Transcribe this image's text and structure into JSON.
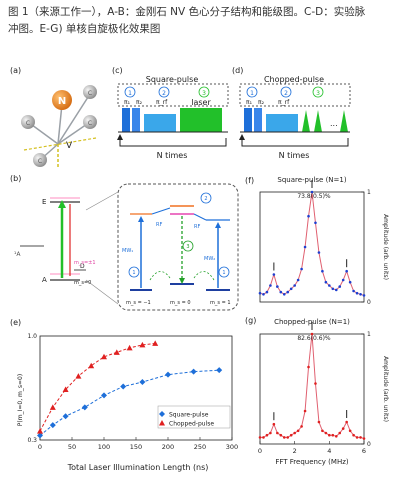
{
  "caption": {
    "line1": "图 1（来源工作一），A-B：金刚石 NV 色心分子结构和能级图。C-D：实验脉",
    "line2": "冲图。E-G) 单核自旋极化效果图"
  },
  "panels": {
    "a": "(a)",
    "b": "(b)",
    "c": "(c)",
    "d": "(d)",
    "e": "(e)",
    "f": "(f)",
    "g": "(g)"
  },
  "structure": {
    "N": "N",
    "C": "C",
    "V": "V"
  },
  "levels": {
    "E": "E",
    "A": "A",
    "A1": "¹A",
    "D": "D",
    "ms_pm1": "m_s=±1",
    "ms_0": "m_s=0",
    "bottom_left": "m_s = −1",
    "bottom_mid": "m_s = 0",
    "bottom_right": "m_s = 1",
    "rf": "RF",
    "mw1": "MW₁",
    "mw2": "MW₂",
    "num1": "1",
    "num2": "2",
    "num3": "3"
  },
  "pulse_c": {
    "title": "Square-pulse",
    "labels": [
      "π₁",
      "π₂",
      "π_rf",
      "laser"
    ],
    "steps": [
      "1",
      "2",
      "3"
    ],
    "loop": "N times"
  },
  "pulse_d": {
    "title": "Chopped-pulse",
    "labels": [
      "π₁",
      "π₂",
      "π_rf"
    ],
    "steps": [
      "1",
      "2",
      "3"
    ],
    "dots": "...",
    "loop": "N times"
  },
  "colors": {
    "blue": "#1e6fd9",
    "red": "#e02020",
    "green": "#22c02a",
    "pink": "#ff8ec0",
    "orange": "#f07020",
    "grid": "#999999"
  },
  "chart_data": [
    {
      "type": "scatter",
      "id": "e",
      "xlabel": "Total Laser Illumination Length (ns)",
      "ylabel": "P(m_I=0, m_s=0)",
      "xlim": [
        0,
        300
      ],
      "ylim": [
        0.3,
        1.0
      ],
      "xticks": [
        0,
        50,
        100,
        150,
        200,
        250,
        300
      ],
      "yticks": [
        "0.3",
        "1.0"
      ],
      "legend": [
        "Square-pulse",
        "Chopped-pulse"
      ],
      "legend_position": "bottom-right",
      "series": [
        {
          "name": "Square-pulse",
          "color": "#1e6fd9",
          "marker": "diamond",
          "x": [
            0,
            20,
            40,
            70,
            100,
            130,
            160,
            200,
            240,
            280
          ],
          "y": [
            0.33,
            0.4,
            0.46,
            0.52,
            0.6,
            0.66,
            0.69,
            0.74,
            0.76,
            0.77
          ]
        },
        {
          "name": "Chopped-pulse",
          "color": "#e02020",
          "marker": "triangle",
          "x": [
            0,
            20,
            40,
            60,
            80,
            100,
            120,
            140,
            160,
            180
          ],
          "y": [
            0.36,
            0.52,
            0.64,
            0.73,
            0.8,
            0.86,
            0.89,
            0.92,
            0.94,
            0.95
          ]
        }
      ]
    },
    {
      "type": "line",
      "id": "f",
      "title": "Square-pulse (N=1)",
      "peak_label": "73.8(0.5)%",
      "ylabel": "Amplitude (arb. units)",
      "xlim": [
        0,
        6
      ],
      "ylim": [
        0,
        1
      ],
      "x": [
        0.0,
        0.2,
        0.4,
        0.6,
        0.8,
        1.0,
        1.2,
        1.4,
        1.6,
        1.8,
        2.0,
        2.2,
        2.4,
        2.6,
        2.8,
        3.0,
        3.2,
        3.4,
        3.6,
        3.8,
        4.0,
        4.2,
        4.4,
        4.6,
        4.8,
        5.0,
        5.2,
        5.4,
        5.6,
        5.8,
        6.0
      ],
      "y": [
        0.08,
        0.07,
        0.09,
        0.15,
        0.25,
        0.14,
        0.09,
        0.07,
        0.09,
        0.12,
        0.15,
        0.2,
        0.3,
        0.5,
        0.78,
        1.0,
        0.72,
        0.45,
        0.28,
        0.18,
        0.15,
        0.12,
        0.11,
        0.14,
        0.2,
        0.28,
        0.18,
        0.1,
        0.08,
        0.07,
        0.06
      ],
      "markers_at": [
        0.8,
        3.0,
        5.0
      ]
    },
    {
      "type": "line",
      "id": "g",
      "title": "Chopped-pulse (N=1)",
      "peak_label": "82.6(0.6)%",
      "ylabel": "Amplitude (arb. units)",
      "xlabel": "FFT Frequency (MHz)",
      "xlim": [
        0,
        6
      ],
      "ylim": [
        0,
        1
      ],
      "xticks": [
        0,
        2,
        4,
        6
      ],
      "x": [
        0.0,
        0.2,
        0.4,
        0.6,
        0.8,
        1.0,
        1.2,
        1.4,
        1.6,
        1.8,
        2.0,
        2.2,
        2.4,
        2.6,
        2.8,
        3.0,
        3.2,
        3.4,
        3.6,
        3.8,
        4.0,
        4.2,
        4.4,
        4.6,
        4.8,
        5.0,
        5.2,
        5.4,
        5.6,
        5.8,
        6.0
      ],
      "y": [
        0.06,
        0.06,
        0.08,
        0.1,
        0.18,
        0.1,
        0.08,
        0.06,
        0.06,
        0.08,
        0.1,
        0.12,
        0.16,
        0.3,
        0.7,
        1.0,
        0.55,
        0.2,
        0.12,
        0.1,
        0.08,
        0.08,
        0.07,
        0.1,
        0.14,
        0.2,
        0.12,
        0.08,
        0.06,
        0.06,
        0.05
      ],
      "markers_at": [
        0.8,
        3.0,
        5.0
      ]
    }
  ]
}
